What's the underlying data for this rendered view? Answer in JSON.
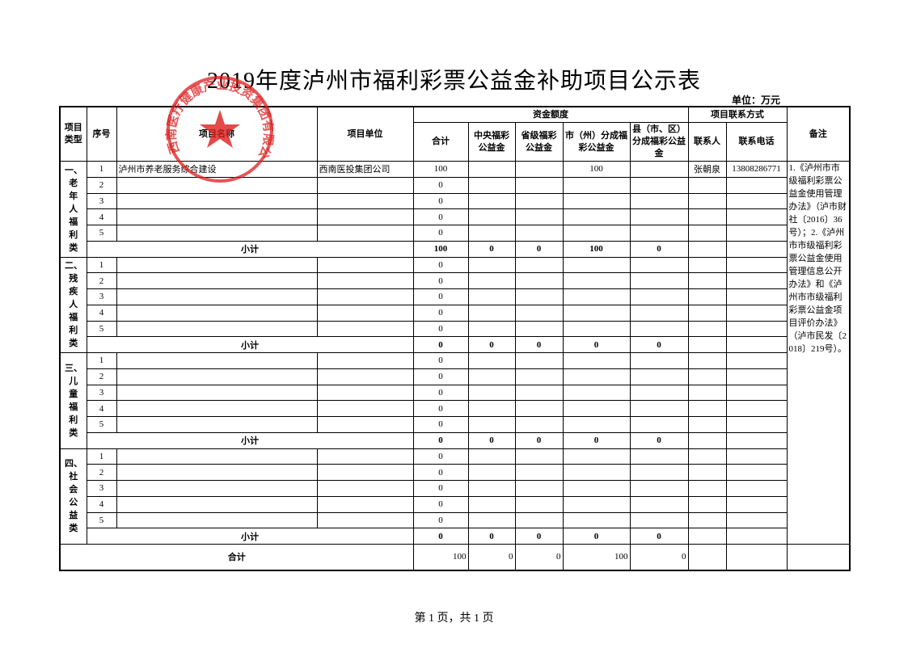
{
  "header": {
    "title": "2019年度泸州市福利彩票公益金补助项目公示表",
    "unit": "单位：万元"
  },
  "stamp": {
    "text": "西南医疗健康产业投资集团有限公司"
  },
  "table": {
    "headers": {
      "type": "项目类型",
      "no": "序号",
      "name": "项目名称",
      "org": "项目单位",
      "funds": "资金额度",
      "total": "合计",
      "central": "中央福彩公益金",
      "province": "省级福彩公益金",
      "city": "市（州）分成福彩公益金",
      "county": "县（市、区）分成福彩公益金",
      "contact_group": "项目联系方式",
      "contact": "联系人",
      "phone": "联系电话",
      "remarks": "备注"
    },
    "groups": [
      {
        "type": "一、老年人福利类",
        "rows": [
          {
            "no": 1,
            "name": "泸州市养老服务综合建设",
            "org": "西南医投集团公司",
            "total": 100,
            "city": 100,
            "contact": "张朝泉",
            "phone": "13808286771"
          },
          {
            "no": 2,
            "total": 0
          },
          {
            "no": 3,
            "total": 0
          },
          {
            "no": 4,
            "total": 0
          },
          {
            "no": 5,
            "total": 0
          }
        ],
        "subtotal": {
          "label": "小计",
          "values": [
            100,
            0,
            0,
            100,
            0
          ]
        }
      },
      {
        "type": "二、残疾人福利类",
        "rows": [
          {
            "no": 1,
            "total": 0
          },
          {
            "no": 2,
            "total": 0
          },
          {
            "no": 3,
            "total": 0
          },
          {
            "no": 4,
            "total": 0
          },
          {
            "no": 5,
            "total": 0
          }
        ],
        "subtotal": {
          "label": "小计",
          "values": [
            0,
            0,
            0,
            0,
            0
          ]
        }
      },
      {
        "type": "三、儿童福利类",
        "rows": [
          {
            "no": 1,
            "total": 0
          },
          {
            "no": 2,
            "total": 0
          },
          {
            "no": 3,
            "total": 0
          },
          {
            "no": 4,
            "total": 0
          },
          {
            "no": 5,
            "total": 0
          }
        ],
        "subtotal": {
          "label": "小计",
          "values": [
            0,
            0,
            0,
            0,
            0
          ]
        }
      },
      {
        "type": "四、社会公益类",
        "rows": [
          {
            "no": 1,
            "total": 0
          },
          {
            "no": 2,
            "total": 0
          },
          {
            "no": 3,
            "total": 0
          },
          {
            "no": 4,
            "total": 0
          },
          {
            "no": 5,
            "total": 0
          }
        ],
        "subtotal": {
          "label": "小计",
          "values": [
            0,
            0,
            0,
            0,
            0
          ]
        }
      }
    ],
    "remarks": "1.《泸州市市级福利彩票公益金使用管理办法》（泸市财社〔2016〕36号）；2.《泸州市市级福利彩票公益金使用管理信息公开办法》和《泸州市市级福利彩票公益金项目评价办法》（泸市民发〔2018〕219号）。",
    "grand_total": {
      "label": "合计",
      "values": [
        100,
        0,
        0,
        100,
        0
      ]
    }
  },
  "footer": {
    "page": "第 1 页，共 1 页"
  }
}
